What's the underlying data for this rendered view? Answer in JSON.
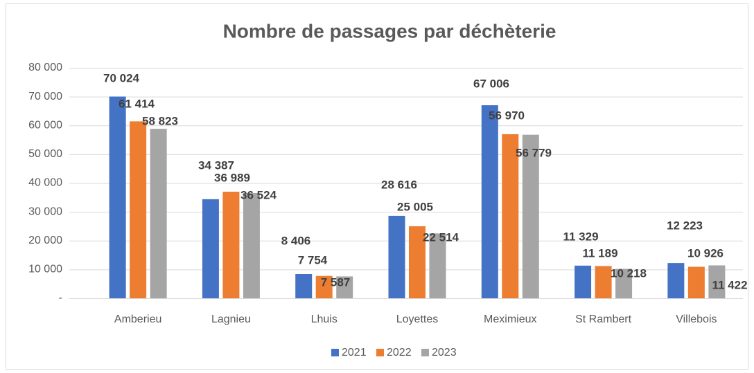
{
  "chart_data": {
    "type": "bar",
    "title": "Nombre de passages par déchèterie",
    "categories": [
      "Amberieu",
      "Lagnieu",
      "Lhuis",
      "Loyettes",
      "Meximieux",
      "St Rambert",
      "Villebois"
    ],
    "series": [
      {
        "name": "2021",
        "color": "#4472c4",
        "values": [
          70024,
          34387,
          8406,
          28616,
          67006,
          11329,
          12223
        ],
        "value_labels": [
          "70 024",
          "34 387",
          "8 406",
          "28 616",
          "67 006",
          "11 329",
          "12 223"
        ]
      },
      {
        "name": "2022",
        "color": "#ed7d31",
        "values": [
          61414,
          36989,
          7754,
          25005,
          56970,
          11189,
          10926
        ],
        "value_labels": [
          "61 414",
          "36 989",
          "7 754",
          "25 005",
          "56 970",
          "11 189",
          "10 926"
        ]
      },
      {
        "name": "2023",
        "color": "#a5a5a5",
        "values": [
          58823,
          36524,
          7587,
          22514,
          56779,
          10218,
          11422
        ],
        "value_labels": [
          "58 823",
          "36 524",
          "7 587",
          "22 514",
          "56 779",
          "10 218",
          "11 422"
        ]
      }
    ],
    "ylim": [
      0,
      80000
    ],
    "yticks": [
      {
        "value": 0,
        "label": "-"
      },
      {
        "value": 10000,
        "label": "10 000"
      },
      {
        "value": 20000,
        "label": "20 000"
      },
      {
        "value": 30000,
        "label": "30 000"
      },
      {
        "value": 40000,
        "label": "40 000"
      },
      {
        "value": 50000,
        "label": "50 000"
      },
      {
        "value": 60000,
        "label": "60 000"
      },
      {
        "value": 70000,
        "label": "70 000"
      },
      {
        "value": 80000,
        "label": "80 000"
      }
    ],
    "grid": true,
    "legend": "bottom"
  }
}
